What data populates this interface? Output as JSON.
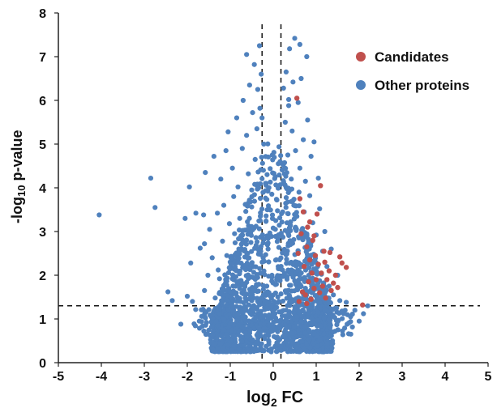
{
  "chart_data": {
    "type": "scatter",
    "title": "",
    "xlabel": {
      "prefix": "log",
      "sub": "2",
      "suffix": " FC"
    },
    "ylabel": {
      "prefix": "-log",
      "sub": "10",
      "suffix": " p-value"
    },
    "xlim": [
      -5,
      5
    ],
    "ylim": [
      0,
      8
    ],
    "xticks": [
      "-5",
      "-4",
      "-3",
      "-2",
      "-1",
      "0",
      "1",
      "2",
      "3",
      "4",
      "5"
    ],
    "yticks": [
      "0",
      "1",
      "2",
      "3",
      "4",
      "5",
      "6",
      "7",
      "8"
    ],
    "grid": false,
    "legend": {
      "position": "top-right",
      "entries": [
        {
          "name": "Candidates",
          "color": "#c0504d"
        },
        {
          "name": "Other proteins",
          "color": "#4f81bd"
        }
      ]
    },
    "thresholds": {
      "vertical": [
        -0.26,
        0.18
      ],
      "horizontal": 1.3
    },
    "series": [
      {
        "name": "Other proteins",
        "color": "#4f81bd",
        "points": [
          [
            -4.05,
            3.38
          ],
          [
            -2.85,
            4.22
          ],
          [
            -2.75,
            3.55
          ],
          [
            -2.45,
            1.62
          ],
          [
            -2.35,
            1.42
          ],
          [
            -2.15,
            0.88
          ],
          [
            -2.05,
            3.3
          ],
          [
            -2.0,
            1.52
          ],
          [
            -1.95,
            4.02
          ],
          [
            -1.88,
            1.4
          ],
          [
            -1.8,
            3.42
          ],
          [
            -1.72,
            0.95
          ],
          [
            -1.7,
            2.62
          ],
          [
            -1.62,
            3.38
          ],
          [
            -1.6,
            1.65
          ],
          [
            -1.58,
            4.35
          ],
          [
            -1.52,
            2.0
          ],
          [
            -1.48,
            3.05
          ],
          [
            -1.42,
            0.82
          ],
          [
            -1.42,
            2.4
          ],
          [
            -1.38,
            4.72
          ],
          [
            -1.35,
            1.48
          ],
          [
            -1.3,
            3.42
          ],
          [
            -1.28,
            2.12
          ],
          [
            -1.25,
            1.92
          ],
          [
            -1.22,
            4.2
          ],
          [
            -1.18,
            2.78
          ],
          [
            -1.15,
            3.6
          ],
          [
            -1.12,
            1.8
          ],
          [
            -1.1,
            4.85
          ],
          [
            -1.08,
            2.45
          ],
          [
            -1.05,
            5.28
          ],
          [
            -1.02,
            3.18
          ],
          [
            -1.0,
            1.62
          ],
          [
            -0.98,
            2.25
          ],
          [
            -0.95,
            4.45
          ],
          [
            -0.92,
            3.8
          ],
          [
            -0.9,
            2.95
          ],
          [
            -0.88,
            1.75
          ],
          [
            -0.85,
            5.6
          ],
          [
            -0.82,
            4.02
          ],
          [
            -0.8,
            2.6
          ],
          [
            -0.78,
            3.3
          ],
          [
            -0.75,
            1.88
          ],
          [
            -0.72,
            4.9
          ],
          [
            -0.7,
            6.0
          ],
          [
            -0.68,
            2.2
          ],
          [
            -0.65,
            3.62
          ],
          [
            -0.62,
            5.2
          ],
          [
            -0.6,
            1.98
          ],
          [
            -0.58,
            4.32
          ],
          [
            -0.55,
            6.35
          ],
          [
            -0.52,
            2.75
          ],
          [
            -0.5,
            3.95
          ],
          [
            -0.48,
            5.72
          ],
          [
            -0.46,
            2.2
          ],
          [
            -0.44,
            6.82
          ],
          [
            -0.42,
            4.65
          ],
          [
            -0.4,
            3.12
          ],
          [
            -0.38,
            5.35
          ],
          [
            -0.36,
            6.25
          ],
          [
            -0.34,
            4.0
          ],
          [
            -0.32,
            7.25
          ],
          [
            -0.31,
            5.82
          ],
          [
            -0.3,
            3.35
          ],
          [
            -0.28,
            6.6
          ],
          [
            -0.29,
            2.55
          ],
          [
            -0.27,
            4.7
          ],
          [
            -0.26,
            5.6
          ],
          [
            0.22,
            3.45
          ],
          [
            0.24,
            6.28
          ],
          [
            0.26,
            4.32
          ],
          [
            0.28,
            5.5
          ],
          [
            0.3,
            6.65
          ],
          [
            0.32,
            3.2
          ],
          [
            0.34,
            4.75
          ],
          [
            0.36,
            5.88
          ],
          [
            0.38,
            7.18
          ],
          [
            0.4,
            2.7
          ],
          [
            0.42,
            4.2
          ],
          [
            0.44,
            5.3
          ],
          [
            0.46,
            6.42
          ],
          [
            0.48,
            3.6
          ],
          [
            0.5,
            7.42
          ],
          [
            0.52,
            4.85
          ],
          [
            0.55,
            2.3
          ],
          [
            0.58,
            5.95
          ],
          [
            0.6,
            3.9
          ],
          [
            0.62,
            4.45
          ],
          [
            0.65,
            6.5
          ],
          [
            0.68,
            2.85
          ],
          [
            0.7,
            5.1
          ],
          [
            0.72,
            3.45
          ],
          [
            0.75,
            4.15
          ],
          [
            0.78,
            7.0
          ],
          [
            0.8,
            5.55
          ],
          [
            0.82,
            2.6
          ],
          [
            0.85,
            3.82
          ],
          [
            0.88,
            4.72
          ],
          [
            0.9,
            2.25
          ],
          [
            0.92,
            3.2
          ],
          [
            0.95,
            5.05
          ],
          [
            0.98,
            1.9
          ],
          [
            1.0,
            2.92
          ],
          [
            1.05,
            4.22
          ],
          [
            1.08,
            3.52
          ],
          [
            1.12,
            1.6
          ],
          [
            1.15,
            2.55
          ],
          [
            1.2,
            3.0
          ],
          [
            1.25,
            2.2
          ],
          [
            1.3,
            1.75
          ],
          [
            1.35,
            2.6
          ],
          [
            1.4,
            1.55
          ],
          [
            1.45,
            1.25
          ],
          [
            1.5,
            2.0
          ],
          [
            1.55,
            1.42
          ],
          [
            1.6,
            1.18
          ],
          [
            1.7,
            1.38
          ],
          [
            1.8,
            1.05
          ],
          [
            1.9,
            1.2
          ],
          [
            2.0,
            0.95
          ],
          [
            2.1,
            1.12
          ],
          [
            2.2,
            1.3
          ],
          [
            1.72,
            0.88
          ],
          [
            -1.55,
            0.92
          ],
          [
            -1.25,
            1.12
          ],
          [
            -0.95,
            1.3
          ],
          [
            -0.7,
            1.05
          ],
          [
            -0.5,
            1.42
          ],
          [
            -0.3,
            1.15
          ],
          [
            0.3,
            1.2
          ],
          [
            0.55,
            1.05
          ],
          [
            0.8,
            1.28
          ],
          [
            1.05,
            1.15
          ],
          [
            1.3,
            0.98
          ],
          [
            -1.6,
            2.72
          ],
          [
            -1.92,
            2.28
          ],
          [
            -0.62,
            7.05
          ],
          [
            0.62,
            7.28
          ],
          [
            0.36,
            6.02
          ],
          [
            -0.2,
            0.55
          ],
          [
            0.1,
            0.42
          ],
          [
            -0.05,
            0.3
          ],
          [
            0.25,
            0.62
          ],
          [
            -0.45,
            0.78
          ],
          [
            0.48,
            0.82
          ],
          [
            -0.85,
            0.95
          ],
          [
            0.92,
            0.92
          ],
          [
            -1.15,
            1.0
          ],
          [
            1.18,
            1.02
          ],
          [
            -0.15,
            1.75
          ],
          [
            0.12,
            2.15
          ],
          [
            -0.12,
            2.6
          ],
          [
            0.05,
            3.05
          ],
          [
            -0.08,
            3.5
          ],
          [
            0.02,
            1.4
          ],
          [
            -0.18,
            4.1
          ],
          [
            0.16,
            4.6
          ],
          [
            -0.22,
            5.0
          ],
          [
            0.2,
            2.9
          ],
          [
            -0.1,
            1.6
          ],
          [
            0.08,
            1.9
          ]
        ]
      },
      {
        "name": "Candidates",
        "color": "#c0504d",
        "points": [
          [
            0.55,
            6.05
          ],
          [
            0.62,
            3.75
          ],
          [
            0.65,
            2.95
          ],
          [
            0.7,
            3.45
          ],
          [
            0.72,
            2.2
          ],
          [
            0.75,
            1.55
          ],
          [
            0.78,
            2.65
          ],
          [
            0.8,
            3.1
          ],
          [
            0.82,
            1.85
          ],
          [
            0.85,
            2.35
          ],
          [
            0.88,
            1.45
          ],
          [
            0.9,
            2.05
          ],
          [
            0.92,
            2.8
          ],
          [
            0.95,
            1.7
          ],
          [
            0.98,
            2.45
          ],
          [
            1.0,
            1.9
          ],
          [
            1.05,
            2.25
          ],
          [
            1.08,
            1.6
          ],
          [
            1.1,
            4.05
          ],
          [
            1.12,
            2.05
          ],
          [
            1.15,
            1.75
          ],
          [
            1.18,
            2.55
          ],
          [
            1.2,
            2.3
          ],
          [
            1.25,
            1.9
          ],
          [
            1.3,
            2.1
          ],
          [
            1.35,
            1.65
          ],
          [
            1.4,
            1.82
          ],
          [
            1.45,
            2.0
          ],
          [
            1.5,
            1.72
          ],
          [
            1.55,
            2.42
          ],
          [
            1.6,
            2.28
          ],
          [
            1.7,
            2.18
          ],
          [
            2.08,
            1.32
          ],
          [
            0.6,
            1.4
          ],
          [
            0.68,
            1.62
          ],
          [
            0.58,
            2.5
          ],
          [
            0.85,
            3.22
          ],
          [
            0.95,
            2.9
          ],
          [
            1.02,
            3.4
          ],
          [
            0.78,
            1.35
          ],
          [
            1.22,
            1.48
          ],
          [
            1.32,
            2.52
          ]
        ]
      }
    ]
  }
}
